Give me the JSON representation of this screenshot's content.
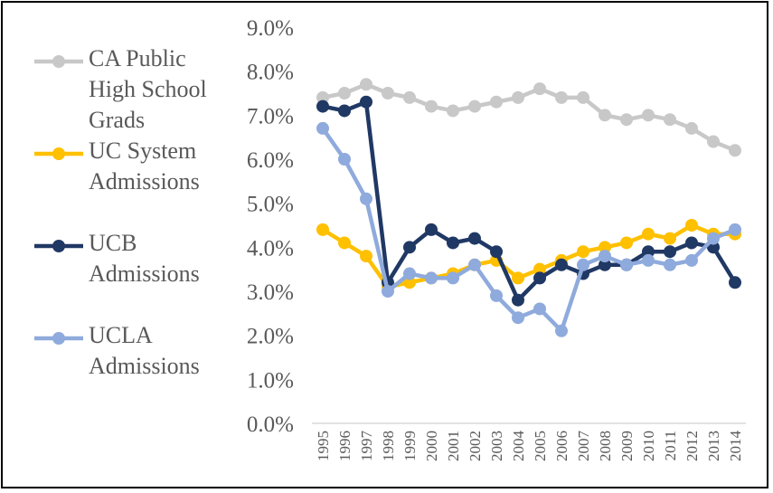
{
  "chart_data": {
    "type": "line",
    "title": "",
    "xlabel": "",
    "ylabel": "",
    "x": [
      "1995",
      "1996",
      "1997",
      "1998",
      "1999",
      "2000",
      "2001",
      "2002",
      "2003",
      "2004",
      "2005",
      "2006",
      "2007",
      "2008",
      "2009",
      "2010",
      "2011",
      "2012",
      "2013",
      "2014"
    ],
    "ylim": [
      0,
      9
    ],
    "y_ticks": [
      "0.0%",
      "1.0%",
      "2.0%",
      "3.0%",
      "4.0%",
      "5.0%",
      "6.0%",
      "7.0%",
      "8.0%",
      "9.0%"
    ],
    "grid": false,
    "legend_position": "left",
    "series": [
      {
        "name": "CA Public High School Grads",
        "color": "#c8c8c8",
        "values": [
          7.4,
          7.5,
          7.7,
          7.5,
          7.4,
          7.2,
          7.1,
          7.2,
          7.3,
          7.4,
          7.6,
          7.4,
          7.4,
          7.0,
          6.9,
          7.0,
          6.9,
          6.7,
          6.4,
          6.2
        ]
      },
      {
        "name": "UC System Admissions",
        "color": "#ffc000",
        "values": [
          4.4,
          4.1,
          3.8,
          3.1,
          3.2,
          3.3,
          3.4,
          3.6,
          3.7,
          3.3,
          3.5,
          3.7,
          3.9,
          4.0,
          4.1,
          4.3,
          4.2,
          4.5,
          4.3,
          4.3
        ]
      },
      {
        "name": "UCB Admissions",
        "color": "#203864",
        "values": [
          7.2,
          7.1,
          7.3,
          3.2,
          4.0,
          4.4,
          4.1,
          4.2,
          3.9,
          2.8,
          3.3,
          3.6,
          3.4,
          3.6,
          3.6,
          3.9,
          3.9,
          4.1,
          4.0,
          3.2
        ]
      },
      {
        "name": "UCLA Admissions",
        "color": "#8faadc",
        "values": [
          6.7,
          6.0,
          5.1,
          3.0,
          3.4,
          3.3,
          3.3,
          3.6,
          2.9,
          2.4,
          2.6,
          2.1,
          3.6,
          3.8,
          3.6,
          3.7,
          3.6,
          3.7,
          4.2,
          4.4
        ]
      }
    ]
  }
}
